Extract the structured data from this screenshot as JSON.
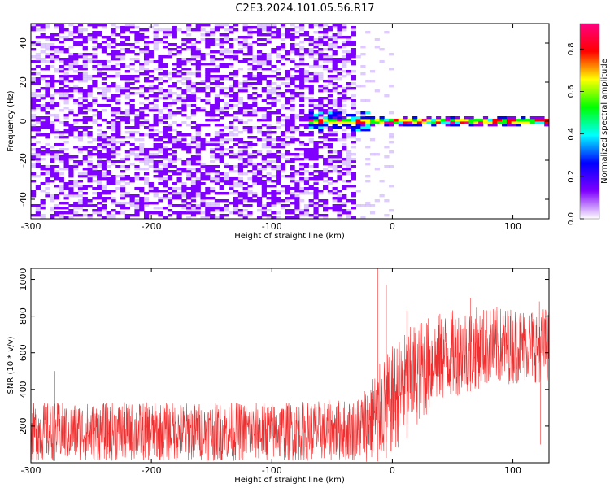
{
  "title": "C2E3.2024.101.05.56.R17",
  "chart_data": [
    {
      "type": "heatmap",
      "title": "C2E3.2024.101.05.56.R17",
      "xlabel": "Height of straight line (km)",
      "ylabel": "Frequency (Hz)",
      "xlim": [
        -300,
        130
      ],
      "ylim": [
        -50,
        50
      ],
      "xticks": [
        -300,
        -200,
        -100,
        0,
        100
      ],
      "yticks": [
        -40,
        -20,
        0,
        20,
        40
      ],
      "grid": false,
      "colorbar": {
        "label": "Normalized spectral amplitude",
        "range": [
          0.0,
          0.92
        ],
        "ticks": [
          0.0,
          0.2,
          0.4,
          0.6,
          0.8
        ],
        "colormap": [
          "#ffffff",
          "#7f00ff",
          "#0000ff",
          "#00ffff",
          "#00ff00",
          "#ffff00",
          "#ff0000",
          "#ff0080"
        ]
      },
      "features": {
        "noise_region_x": [
          -300,
          -30
        ],
        "noise_color": "#7f00ff",
        "signal_line_x": [
          -70,
          130
        ],
        "signal_line_frequency": 0,
        "signal_amplitude_range": [
          0.4,
          0.9
        ]
      }
    },
    {
      "type": "line",
      "xlabel": "Height of straight line (km)",
      "ylabel": "SNR (10 * v/v)",
      "xlim": [
        -300,
        130
      ],
      "ylim": [
        0,
        1060
      ],
      "xticks": [
        -300,
        -200,
        -100,
        0,
        100
      ],
      "yticks": [
        200,
        400,
        600,
        800,
        1000
      ],
      "grid": false,
      "series": [
        {
          "color": "#f03030",
          "envelope_x": [
            -300,
            -200,
            -100,
            -30,
            -15,
            0,
            20,
            40,
            60,
            80,
            100,
            130
          ],
          "envelope_min": [
            10,
            10,
            10,
            10,
            0,
            40,
            200,
            330,
            380,
            420,
            430,
            440
          ],
          "envelope_max": [
            330,
            330,
            330,
            350,
            500,
            640,
            780,
            820,
            850,
            850,
            850,
            850
          ],
          "peaks": [
            [
              -280,
              500
            ],
            [
              -12,
              1060
            ],
            [
              -5,
              970
            ],
            [
              12,
              830
            ],
            [
              65,
              900
            ],
            [
              122,
              880
            ],
            [
              123,
              100
            ]
          ]
        }
      ]
    }
  ]
}
